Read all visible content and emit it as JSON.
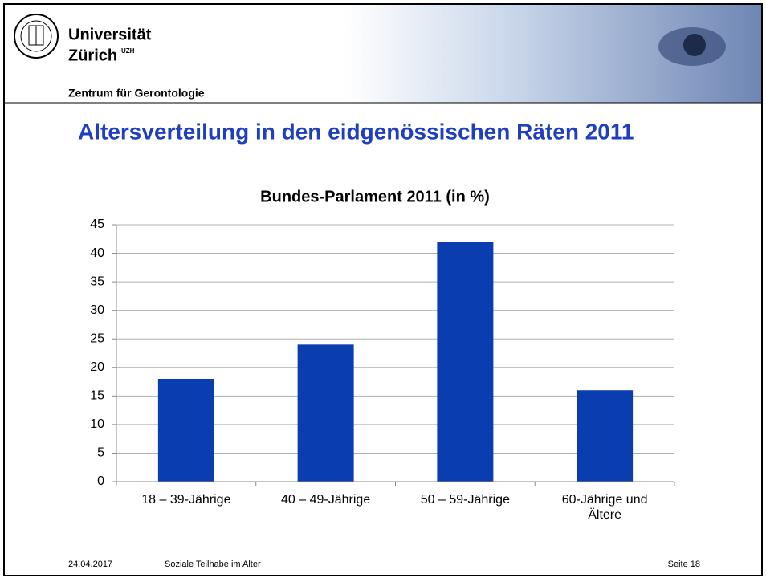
{
  "header": {
    "university_line1": "Universität",
    "university_line2": "Zürich",
    "university_sup": "UZH",
    "institute": "Zentrum für Gerontologie"
  },
  "slide_title": "Altersverteilung in den eidgenössischen Räten 2011",
  "chart_data": {
    "type": "bar",
    "title": "Bundes-Parlament 2011 (in %)",
    "categories": [
      "18 – 39-Jährige",
      "40 – 49-Jährige",
      "50 – 59-Jährige",
      "60-Jährige und Ältere"
    ],
    "values": [
      18,
      24,
      42,
      16
    ],
    "color": "#0a3db0",
    "ylim": [
      0,
      45
    ],
    "yticks": [
      0,
      5,
      10,
      15,
      20,
      25,
      30,
      35,
      40,
      45
    ],
    "grid": true
  },
  "footer": {
    "date": "24.04.2017",
    "topic": "Soziale Teilhabe im Alter",
    "page": "Seite 18"
  }
}
